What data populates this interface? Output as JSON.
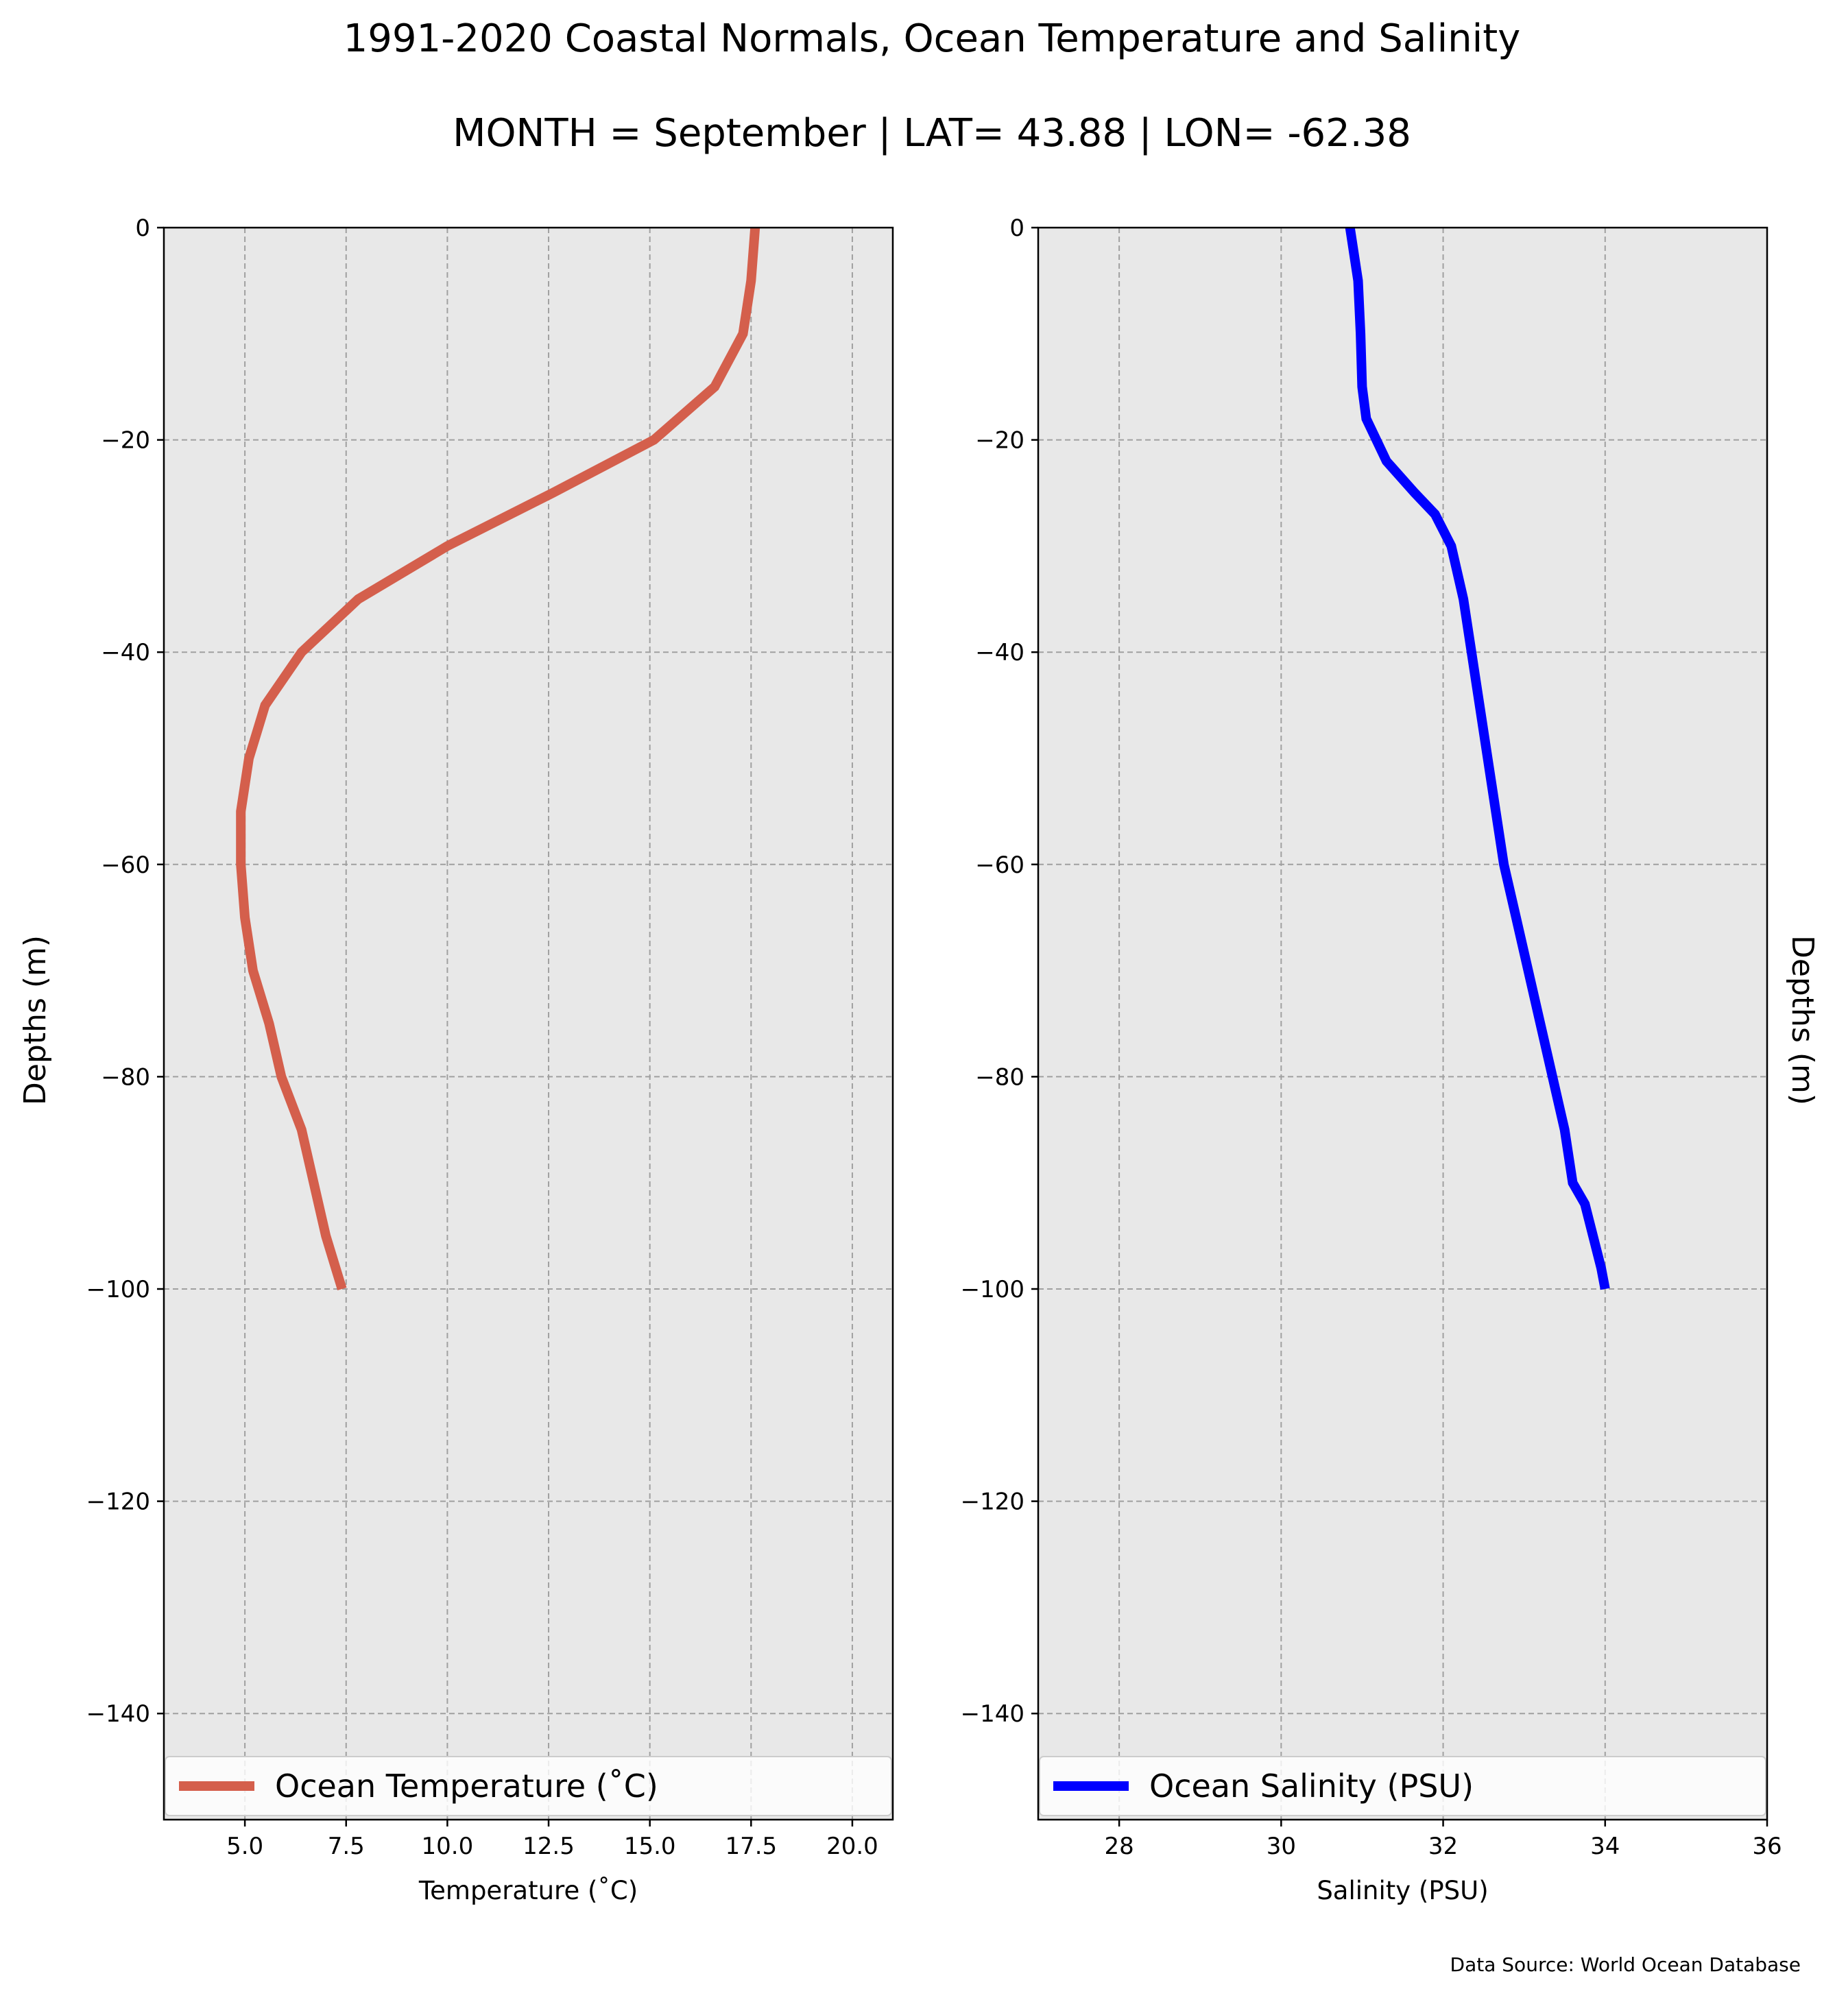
{
  "title": "1991-2020 Coastal Normals, Ocean Temperature and Salinity",
  "subtitle": "MONTH = September | LAT= 43.88 | LON= -62.38",
  "source": "Data Source: World Ocean Database",
  "colors": {
    "panel_bg": "#e8e8e8",
    "grid": "#a0a0a0",
    "temperature": "#d45f4c",
    "salinity": "#0000ff"
  },
  "chart_data": [
    {
      "type": "line",
      "xlabel": "Temperature ($^\\circ$C)",
      "xlabel_display": "Temperature (˚C)",
      "ylabel": "Depths (m)",
      "xlim": [
        3.0,
        21.0
      ],
      "ylim": [
        -150,
        0
      ],
      "xticks": [
        5.0,
        7.5,
        10.0,
        12.5,
        15.0,
        17.5,
        20.0
      ],
      "xtick_labels": [
        "5.0",
        "7.5",
        "10.0",
        "12.5",
        "15.0",
        "17.5",
        "20.0"
      ],
      "yticks": [
        0,
        -20,
        -40,
        -60,
        -80,
        -100,
        -120,
        -140
      ],
      "ytick_labels": [
        "0",
        "−20",
        "−40",
        "−60",
        "−80",
        "−100",
        "−120",
        "−140"
      ],
      "grid": true,
      "legend": "lower-center",
      "series": [
        {
          "name": "Ocean Temperature (˚C)",
          "color": "#d45f4c",
          "x": [
            17.6,
            17.5,
            17.3,
            16.6,
            15.1,
            12.6,
            10.0,
            7.8,
            6.4,
            5.5,
            5.1,
            4.9,
            4.9,
            5.0,
            5.2,
            5.6,
            5.9,
            6.4,
            6.7,
            7.0,
            7.4
          ],
          "y": [
            0,
            -5,
            -10,
            -15,
            -20,
            -25,
            -30,
            -35,
            -40,
            -45,
            -50,
            -55,
            -60,
            -65,
            -70,
            -75,
            -80,
            -85,
            -90,
            -95,
            -100
          ]
        }
      ]
    },
    {
      "type": "line",
      "xlabel": "Salinity (PSU)",
      "ylabel": "Depths (m)",
      "xlim": [
        27,
        36
      ],
      "ylim": [
        -150,
        0
      ],
      "xticks": [
        28,
        30,
        32,
        34,
        36
      ],
      "xtick_labels": [
        "28",
        "30",
        "32",
        "34",
        "36"
      ],
      "yticks": [
        0,
        -20,
        -40,
        -60,
        -80,
        -100,
        -120,
        -140
      ],
      "ytick_labels": [
        "0",
        "−20",
        "−40",
        "−60",
        "−80",
        "−100",
        "−120",
        "−140"
      ],
      "grid": true,
      "legend": "lower-center",
      "series": [
        {
          "name": "Ocean Salinity (PSU)",
          "color": "#0000ff",
          "x": [
            30.85,
            30.95,
            30.98,
            31.0,
            31.05,
            31.3,
            31.65,
            31.9,
            32.1,
            32.25,
            32.35,
            32.45,
            32.55,
            32.65,
            32.75,
            32.9,
            33.05,
            33.2,
            33.35,
            33.5,
            33.6,
            33.75,
            33.85,
            33.95,
            34.0
          ],
          "y": [
            0,
            -5,
            -10,
            -15,
            -18,
            -22,
            -25,
            -27,
            -30,
            -35,
            -40,
            -45,
            -50,
            -55,
            -60,
            -65,
            -70,
            -75,
            -80,
            -85,
            -90,
            -92,
            -95,
            -98,
            -100
          ]
        }
      ]
    }
  ]
}
